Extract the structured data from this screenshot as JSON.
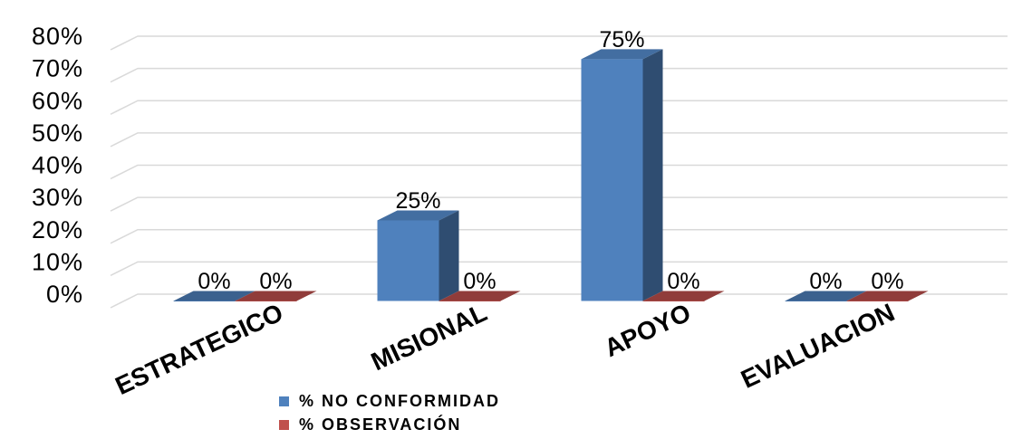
{
  "chart_data": {
    "type": "bar",
    "categories": [
      "ESTRATEGICO",
      "MISIONAL",
      "APOYO",
      "EVALUACION"
    ],
    "series": [
      {
        "name": "% NO CONFORMIDAD",
        "color": "#4f81bd",
        "values": [
          0,
          25,
          75,
          0
        ]
      },
      {
        "name": "% OBSERVACIÓN",
        "color": "#c0504d",
        "values": [
          0,
          0,
          0,
          0
        ]
      }
    ],
    "data_labels": [
      [
        "0%",
        "25%",
        "75%",
        "0%"
      ],
      [
        "0%",
        "0%",
        "0%",
        "0%"
      ]
    ],
    "y_ticks": [
      "0%",
      "10%",
      "20%",
      "30%",
      "40%",
      "50%",
      "60%",
      "70%",
      "80%"
    ],
    "ylim": [
      0,
      80
    ],
    "three_d": true,
    "grid": true,
    "legend_position": "bottom-center"
  }
}
